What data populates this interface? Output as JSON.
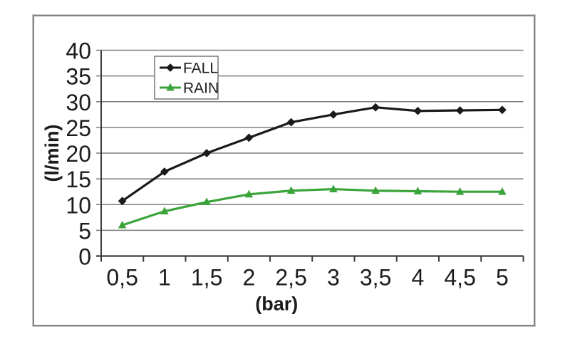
{
  "figure": {
    "background": "#ffffff",
    "frame_border_color": "#838383"
  },
  "chart_data": {
    "type": "line",
    "title": "",
    "xlabel": "(bar)",
    "ylabel": "(l/min)",
    "x": [
      0.5,
      1,
      1.5,
      2,
      2.5,
      3,
      3.5,
      4,
      4.5,
      5
    ],
    "x_labels": [
      "0,5",
      "1",
      "1,5",
      "2",
      "2,5",
      "3",
      "3,5",
      "4",
      "4,5",
      "5"
    ],
    "ylim": [
      0,
      40
    ],
    "ytick_step": 5,
    "y_tick_labels": [
      "0",
      "5",
      "10",
      "15",
      "20",
      "25",
      "30",
      "35",
      "40"
    ],
    "grid": true,
    "legend_position": "top-left-inside",
    "series": [
      {
        "name": "FALL",
        "color": "#1a1a1a",
        "marker": "diamond",
        "values": [
          10.7,
          16.4,
          20,
          23,
          26,
          27.5,
          28.9,
          28.2,
          28.3,
          28.4
        ]
      },
      {
        "name": "RAIN",
        "color": "#3aa43a",
        "marker": "triangle",
        "values": [
          6,
          8.7,
          10.5,
          12,
          12.7,
          13,
          12.7,
          12.6,
          12.5,
          12.5
        ]
      }
    ],
    "gridline_color": "#7f7f7f",
    "axis_color": "#3a3a3a",
    "text_color": "#1c1c1c"
  }
}
